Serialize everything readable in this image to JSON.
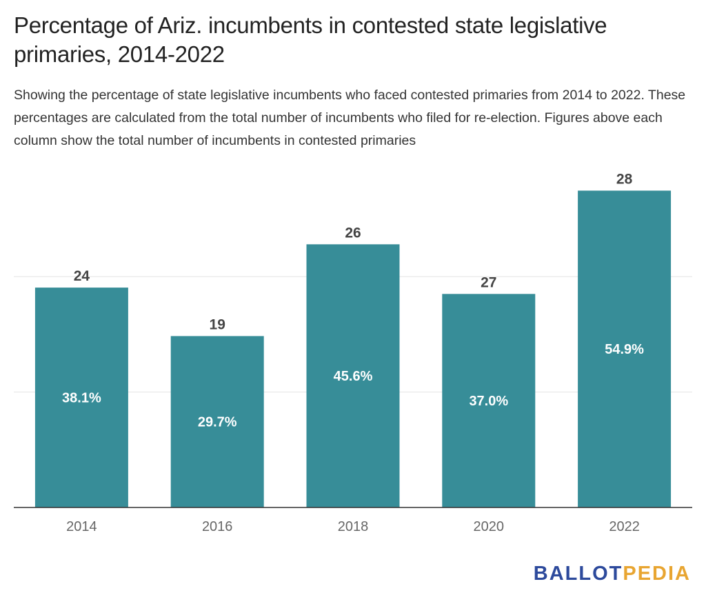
{
  "title": "Percentage of Ariz. incumbents in contested state legislative primaries, 2014-2022",
  "subtitle": "Showing the percentage of state legislative incumbents who faced contested primaries from 2014 to 2022. These percentages are calculated from the total number of incumbents who filed for re-election. Figures above each column show the total number of incumbents in contested primaries",
  "logo": {
    "part1": "BALLOT",
    "part2": "PEDIA"
  },
  "colors": {
    "bar": "#378d98",
    "grid": "#e3e3e3",
    "axis": "#333333",
    "logo_blue": "#2d4a9c",
    "logo_orange": "#e8a531"
  },
  "chart_data": {
    "type": "bar",
    "categories": [
      "2014",
      "2016",
      "2018",
      "2020",
      "2022"
    ],
    "values": [
      38.1,
      29.7,
      45.6,
      37.0,
      54.9
    ],
    "value_labels": [
      "38.1%",
      "29.7%",
      "45.6%",
      "37.0%",
      "54.9%"
    ],
    "top_labels": [
      "24",
      "19",
      "26",
      "27",
      "28"
    ],
    "xlabel": "",
    "ylabel": "",
    "ylim": [
      0,
      60
    ],
    "grid": true
  }
}
